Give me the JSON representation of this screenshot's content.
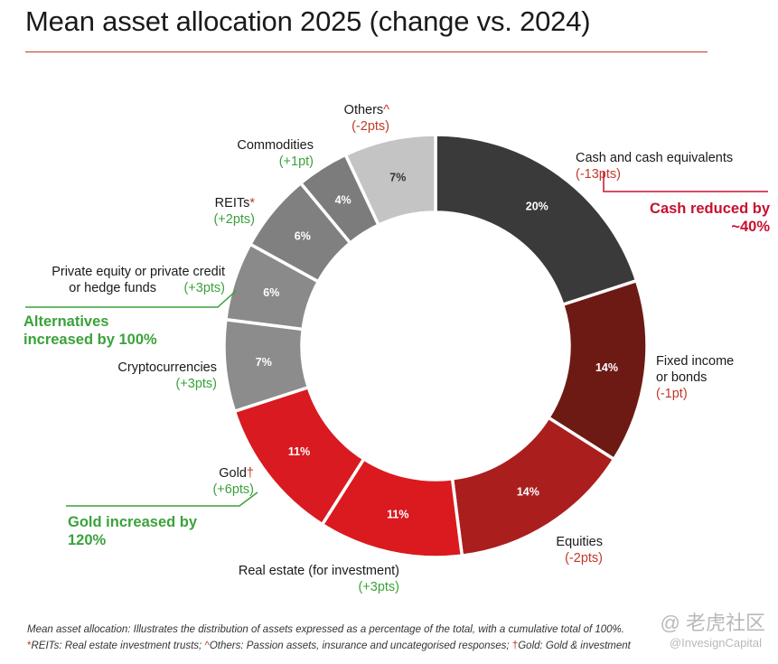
{
  "title": "Mean asset allocation 2025 (change vs. 2024)",
  "colors": {
    "title_rule": "#c0392b",
    "negative_change": "#c0392b",
    "positive_change": "#3aa23a",
    "callout_red": "#c8102e",
    "callout_green": "#3aa23a"
  },
  "chart_data": {
    "type": "pie",
    "donut": true,
    "start": "12 o'clock, clockwise",
    "slices": [
      {
        "label": "Cash and cash equivalents",
        "value": 20,
        "value_label": "20%",
        "change": "(-13pts)",
        "color": "#3a3a3a"
      },
      {
        "label": "Fixed income\nor bonds",
        "value": 14,
        "value_label": "14%",
        "change": "(-1pt)",
        "color": "#6e1a14"
      },
      {
        "label": "Equities",
        "value": 14,
        "value_label": "14%",
        "change": "(-2pts)",
        "color": "#ab1e1e"
      },
      {
        "label": "Real estate (for investment)",
        "value": 11,
        "value_label": "11%",
        "change": "(+3pts)",
        "color": "#da1a1f"
      },
      {
        "label": "Gold",
        "label_mark": "†",
        "value": 11,
        "value_label": "11%",
        "change": "(+6pts)",
        "color": "#d91a20"
      },
      {
        "label": "Cryptocurrencies",
        "value": 7,
        "value_label": "7%",
        "change": "(+3pts)",
        "color": "#8c8c8c"
      },
      {
        "label": "Private equity or private credit\nor hedge funds",
        "value": 6,
        "value_label": "6%",
        "change": "(+3pts)",
        "color": "#8a8a8a"
      },
      {
        "label": "REITs",
        "label_mark": "*",
        "value": 6,
        "value_label": "6%",
        "change": "(+2pts)",
        "color": "#808080"
      },
      {
        "label": "Commodities",
        "value": 4,
        "value_label": "4%",
        "change": "(+1pt)",
        "color": "#7c7c7c"
      },
      {
        "label": "Others",
        "label_mark": "^",
        "value": 7,
        "value_label": "7%",
        "change": "(-2pts)",
        "color": "#c4c4c4"
      }
    ],
    "annotations": [
      {
        "text": "Cash reduced by\n~40%",
        "color": "red"
      },
      {
        "text": "Alternatives\nincreased by 100%",
        "color": "green"
      },
      {
        "text": "Gold increased by\n120%",
        "color": "green"
      }
    ]
  },
  "footnotes": {
    "line1": "Mean asset allocation: Illustrates the distribution of assets expressed as a percentage of the total, with a cumulative total of 100%.",
    "line2_mark1": "*",
    "line2_text1": "REITs: Real estate investment trusts; ",
    "line2_mark2": "^",
    "line2_text2": "Others: Passion assets, insurance and uncategorised responses; ",
    "line2_mark3": "†",
    "line2_text3": "Gold: Gold & investment"
  },
  "watermark": {
    "line1": "@ 老虎社区",
    "line2": "@InvesignCapital"
  }
}
